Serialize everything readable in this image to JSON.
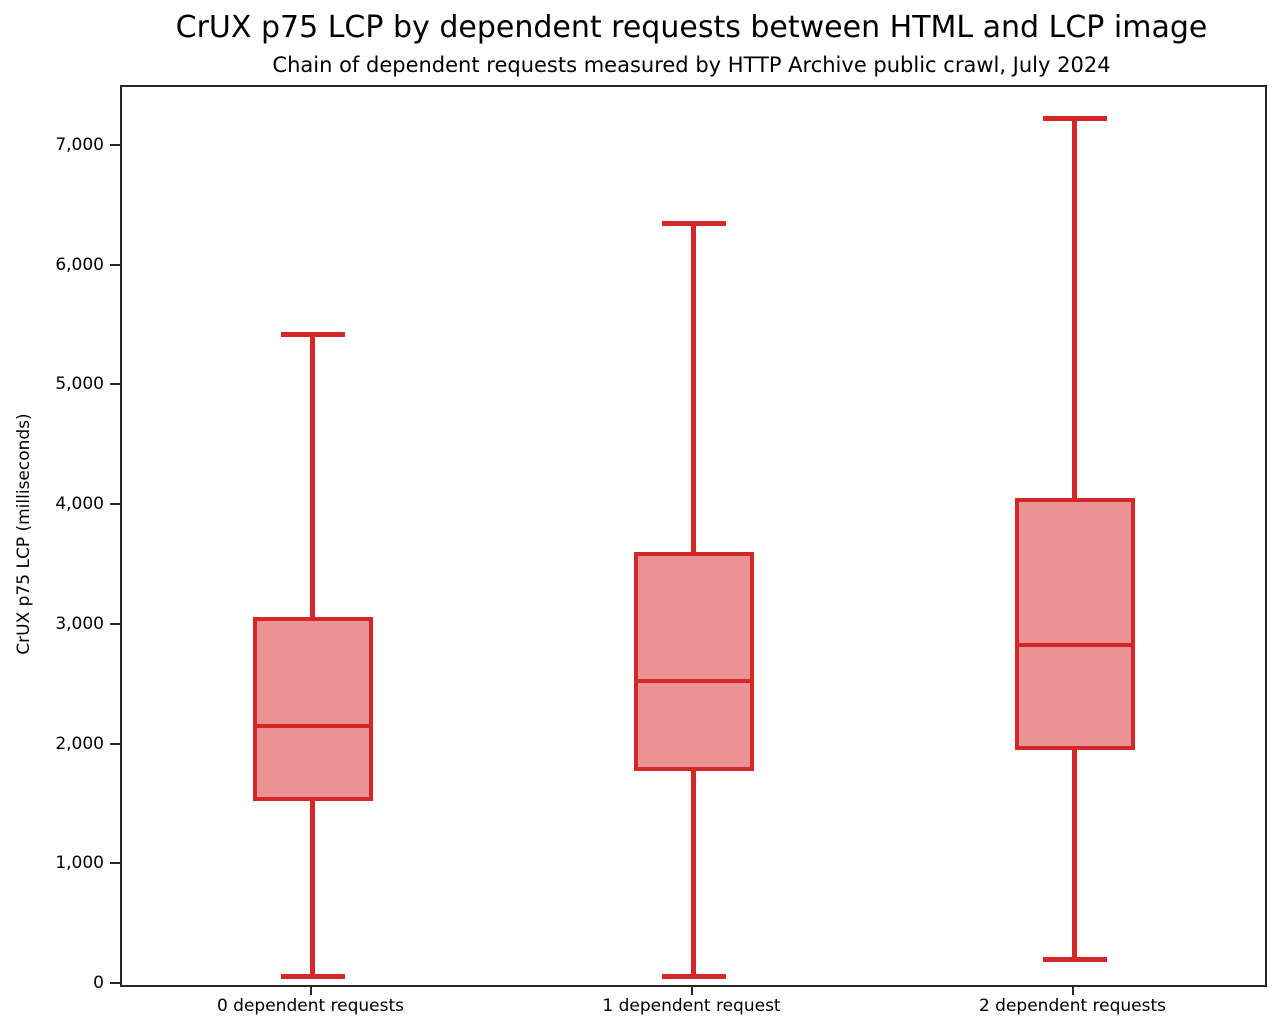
{
  "title": "CrUX p75 LCP by dependent requests between HTML and LCP image",
  "subtitle": "Chain of dependent requests measured by HTTP Archive public crawl, July 2024",
  "chart_data": {
    "type": "boxplot",
    "title": "CrUX p75 LCP by dependent requests between HTML and LCP image",
    "subtitle": "Chain of dependent requests measured by HTTP Archive public crawl, July 2024",
    "xlabel": "",
    "ylabel": "CrUX p75 LCP (milliseconds)",
    "ylim": [
      0,
      7500
    ],
    "grid": false,
    "legend": false,
    "yticks": [
      {
        "value": 0,
        "label": "0"
      },
      {
        "value": 1000,
        "label": "1,000"
      },
      {
        "value": 2000,
        "label": "2,000"
      },
      {
        "value": 3000,
        "label": "3,000"
      },
      {
        "value": 4000,
        "label": "4,000"
      },
      {
        "value": 5000,
        "label": "5,000"
      },
      {
        "value": 6000,
        "label": "6,000"
      },
      {
        "value": 7000,
        "label": "7,000"
      }
    ],
    "categories": [
      "0 dependent requests",
      "1 dependent request",
      "2 dependent requests"
    ],
    "boxes": [
      {
        "category": "0 dependent requests",
        "whisker_low": 75,
        "q1": 1540,
        "median": 2160,
        "q3": 3070,
        "whisker_high": 5430
      },
      {
        "category": "1 dependent request",
        "whisker_low": 70,
        "q1": 1790,
        "median": 2540,
        "q3": 3620,
        "whisker_high": 6360
      },
      {
        "category": "2 dependent requests",
        "whisker_low": 215,
        "q1": 1960,
        "median": 2840,
        "q3": 4070,
        "whisker_high": 7240
      }
    ],
    "colors": {
      "box_edge": "#d62728",
      "box_fill": "#ea9394",
      "whisker": "#d62728",
      "median": "#d62728",
      "axis": "#262626",
      "text": "#000000"
    }
  }
}
